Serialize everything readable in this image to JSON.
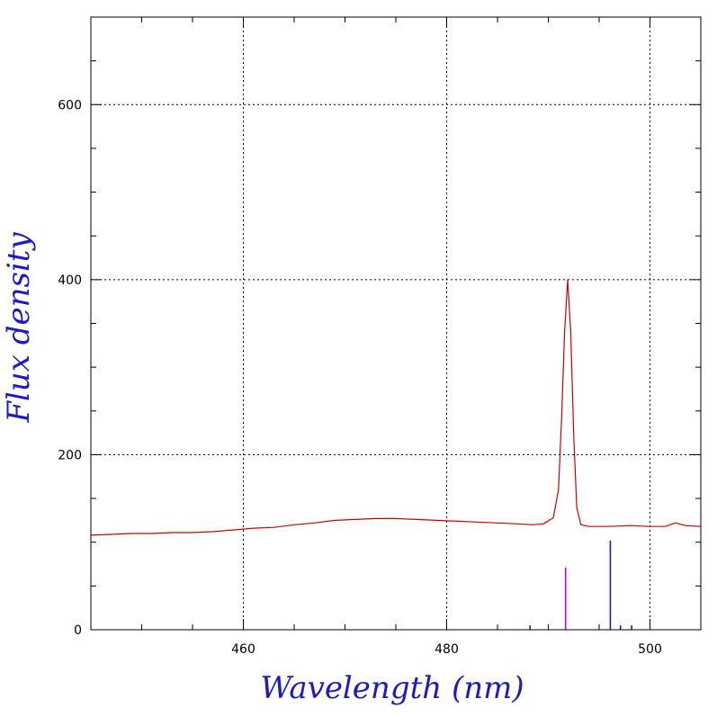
{
  "chart_data": {
    "type": "line",
    "title": "",
    "xlabel": "Wavelength (nm)",
    "ylabel": "Flux density",
    "xlim": [
      445,
      505
    ],
    "ylim": [
      0,
      700
    ],
    "x_ticks": [
      460,
      480,
      500
    ],
    "y_ticks": [
      0,
      200,
      400,
      600
    ],
    "x_minor_step": 5,
    "y_minor_step": 50,
    "grid": true,
    "colors": {
      "spectrum": "#cc0000",
      "axis_titles": "#1a1acc",
      "marker_primary": "#d000d0",
      "marker_secondary": "#1a1acc",
      "grid": "#000000"
    },
    "series": [
      {
        "x": [
          445,
          447,
          449,
          451,
          453,
          455,
          457,
          459,
          461,
          463,
          465,
          467,
          469,
          471,
          473,
          475,
          477,
          479,
          481,
          483,
          485,
          487,
          488.5,
          489.5,
          490.5,
          491,
          491.3,
          491.6,
          491.9,
          492.2,
          492.5,
          492.8,
          493.2,
          494,
          496,
          498,
          500,
          501.5,
          502.5,
          503.5,
          505
        ],
        "y": [
          108,
          109,
          110,
          110,
          111,
          111,
          112,
          114,
          116,
          117,
          120,
          122,
          125,
          126,
          127,
          127,
          126,
          125,
          124,
          123,
          122,
          121,
          120,
          121,
          128,
          160,
          240,
          340,
          400,
          340,
          220,
          140,
          120,
          118,
          118,
          119,
          118,
          118,
          122,
          119,
          118
        ]
      }
    ],
    "line_markers": [
      {
        "x": 491.7,
        "height": 71,
        "color": "marker_primary"
      },
      {
        "x": 496.1,
        "height": 102,
        "color": "marker_secondary"
      },
      {
        "x": 488.2,
        "height": 5,
        "color": "marker_secondary"
      },
      {
        "x": 497.1,
        "height": 5,
        "color": "marker_secondary"
      },
      {
        "x": 498.2,
        "height": 5,
        "color": "marker_secondary"
      }
    ]
  }
}
